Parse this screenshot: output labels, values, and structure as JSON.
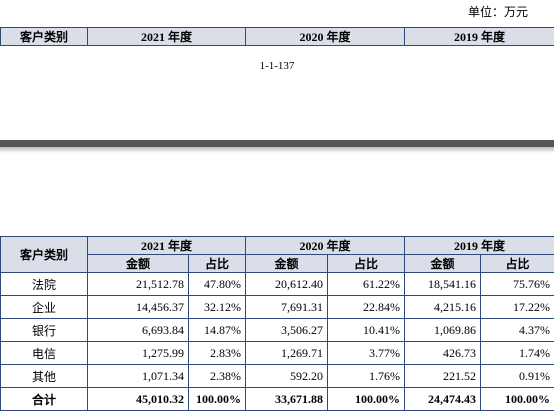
{
  "unit": "单位：万元",
  "top_header": [
    "客户类别",
    "2021 年度",
    "2020 年度",
    "2019 年度"
  ],
  "page_number": "1-1-137",
  "table": {
    "header": [
      "客户类别",
      "2021 年度",
      "2020 年度",
      "2019 年度"
    ],
    "subheader": [
      "金额",
      "占比",
      "金额",
      "占比",
      "金额",
      "占比"
    ],
    "rows": [
      [
        "法院",
        "21,512.78",
        "47.80%",
        "20,612.40",
        "61.22%",
        "18,541.16",
        "75.76%"
      ],
      [
        "企业",
        "14,456.37",
        "32.12%",
        "7,691.31",
        "22.84%",
        "4,215.16",
        "17.22%"
      ],
      [
        "银行",
        "6,693.84",
        "14.87%",
        "3,506.27",
        "10.41%",
        "1,069.86",
        "4.37%"
      ],
      [
        "电信",
        "1,275.99",
        "2.83%",
        "1,269.71",
        "3.77%",
        "426.73",
        "1.74%"
      ],
      [
        "其他",
        "1,071.34",
        "2.38%",
        "592.20",
        "1.76%",
        "221.52",
        "0.91%"
      ],
      [
        "合计",
        "45,010.32",
        "100.00%",
        "33,671.88",
        "100.00%",
        "24,474.43",
        "100.00%"
      ]
    ]
  }
}
